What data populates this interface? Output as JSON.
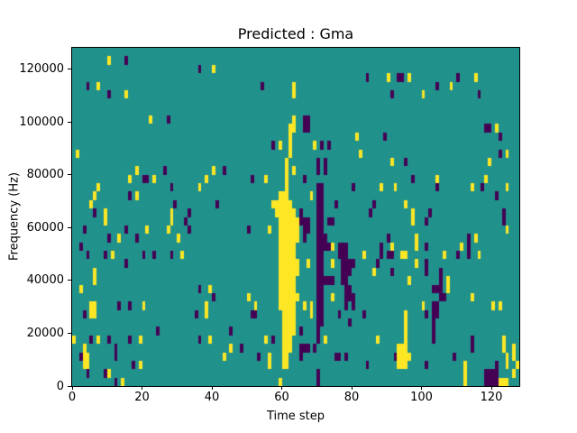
{
  "figure": {
    "title": "Predicted : Gma",
    "xlabel": "Time step",
    "ylabel": "Frequency (Hz)"
  },
  "chart_data": {
    "type": "heatmap",
    "title": "Predicted : Gma",
    "xlabel": "Time step",
    "ylabel": "Frequency (Hz)",
    "x_range": [
      0,
      128
    ],
    "y_range": [
      0,
      128000
    ],
    "x_ticks": [
      0,
      20,
      40,
      60,
      80,
      100,
      120
    ],
    "y_ticks": [
      0,
      20000,
      40000,
      60000,
      80000,
      100000,
      120000
    ],
    "grid": {
      "cols": 128,
      "rows": 40
    },
    "legend": "none",
    "gridlines": false,
    "colors": {
      "mid": "#21918c",
      "high": "#fde725",
      "low": "#440154"
    },
    "encoding": "cells given as vertical runs [col,row_top,row_bottom]; col 0 = time step 0 (left), row 0 = top of plot (~128000 Hz); all other cells have the mid (teal) value",
    "high_runs": [
      [
        10,
        1,
        1
      ],
      [
        40,
        2,
        2
      ],
      [
        7,
        4,
        4
      ],
      [
        15,
        5,
        5
      ],
      [
        22,
        8,
        8
      ],
      [
        1,
        12,
        12
      ],
      [
        18,
        14,
        14
      ],
      [
        40,
        14,
        14
      ],
      [
        16,
        15,
        15
      ],
      [
        23,
        15,
        15
      ],
      [
        38,
        15,
        15
      ],
      [
        7,
        16,
        16
      ],
      [
        36,
        16,
        16
      ],
      [
        6,
        17,
        17
      ],
      [
        18,
        17,
        17
      ],
      [
        5,
        18,
        18
      ],
      [
        9,
        19,
        19
      ],
      [
        28,
        19,
        19
      ],
      [
        63,
        4,
        5
      ],
      [
        63,
        8,
        9
      ],
      [
        62,
        9,
        12
      ],
      [
        59,
        11,
        11
      ],
      [
        69,
        11,
        11
      ],
      [
        81,
        10,
        10
      ],
      [
        82,
        12,
        12
      ],
      [
        61,
        13,
        37
      ],
      [
        63,
        14,
        14
      ],
      [
        55,
        15,
        15
      ],
      [
        68,
        17,
        17
      ],
      [
        57,
        18,
        18
      ],
      [
        58,
        18,
        19
      ],
      [
        59,
        17,
        30
      ],
      [
        60,
        17,
        37
      ],
      [
        62,
        18,
        35
      ],
      [
        63,
        19,
        33
      ],
      [
        64,
        20,
        22
      ],
      [
        64,
        25,
        26
      ],
      [
        64,
        29,
        29
      ],
      [
        56,
        21,
        21
      ],
      [
        50,
        29,
        29
      ],
      [
        52,
        30,
        30
      ],
      [
        66,
        30,
        30
      ],
      [
        68,
        30,
        31
      ],
      [
        67,
        25,
        25
      ],
      [
        74,
        23,
        23
      ],
      [
        74,
        25,
        25
      ],
      [
        74,
        29,
        29
      ],
      [
        83,
        24,
        24
      ],
      [
        45,
        35,
        35
      ],
      [
        43,
        36,
        36
      ],
      [
        55,
        34,
        34
      ],
      [
        72,
        34,
        34
      ],
      [
        56,
        36,
        37
      ],
      [
        59,
        39,
        39
      ],
      [
        90,
        3,
        3
      ],
      [
        96,
        3,
        3
      ],
      [
        115,
        3,
        3
      ],
      [
        108,
        4,
        4
      ],
      [
        100,
        5,
        5
      ],
      [
        121,
        9,
        9
      ],
      [
        124,
        12,
        12
      ],
      [
        91,
        13,
        13
      ],
      [
        119,
        13,
        13
      ],
      [
        104,
        15,
        15
      ],
      [
        118,
        15,
        15
      ],
      [
        88,
        16,
        16
      ],
      [
        92,
        16,
        16
      ],
      [
        114,
        16,
        16
      ],
      [
        124,
        16,
        16
      ],
      [
        95,
        18,
        18
      ],
      [
        97,
        19,
        19
      ],
      [
        9,
        20,
        20
      ],
      [
        28,
        20,
        20
      ],
      [
        21,
        21,
        21
      ],
      [
        27,
        21,
        21
      ],
      [
        13,
        22,
        22
      ],
      [
        30,
        22,
        22
      ],
      [
        11,
        24,
        24
      ],
      [
        31,
        24,
        24
      ],
      [
        6,
        26,
        27
      ],
      [
        2,
        28,
        28
      ],
      [
        39,
        28,
        28
      ],
      [
        20,
        30,
        30
      ],
      [
        5,
        30,
        31
      ],
      [
        6,
        30,
        31
      ],
      [
        38,
        30,
        31
      ],
      [
        0,
        34,
        34
      ],
      [
        7,
        34,
        34
      ],
      [
        19,
        34,
        34
      ],
      [
        39,
        34,
        34
      ],
      [
        3,
        35,
        37
      ],
      [
        4,
        36,
        37
      ],
      [
        19,
        37,
        37
      ],
      [
        10,
        38,
        38
      ],
      [
        14,
        39,
        39
      ],
      [
        97,
        20,
        20
      ],
      [
        124,
        21,
        21
      ],
      [
        98,
        22,
        23
      ],
      [
        115,
        22,
        22
      ],
      [
        91,
        23,
        23
      ],
      [
        111,
        23,
        23
      ],
      [
        94,
        24,
        24
      ],
      [
        95,
        24,
        24
      ],
      [
        106,
        24,
        24
      ],
      [
        116,
        24,
        24
      ],
      [
        98,
        25,
        25
      ],
      [
        86,
        26,
        26
      ],
      [
        96,
        27,
        27
      ],
      [
        107,
        27,
        28
      ],
      [
        114,
        29,
        29
      ],
      [
        100,
        30,
        30
      ],
      [
        120,
        30,
        30
      ],
      [
        122,
        30,
        30
      ],
      [
        95,
        31,
        37
      ],
      [
        93,
        35,
        37
      ],
      [
        94,
        35,
        37
      ],
      [
        96,
        36,
        36
      ],
      [
        87,
        34,
        34
      ],
      [
        123,
        34,
        35
      ],
      [
        126,
        35,
        36
      ],
      [
        124,
        36,
        37
      ],
      [
        127,
        37,
        37
      ],
      [
        112,
        37,
        39
      ],
      [
        126,
        38,
        38
      ],
      [
        122,
        39,
        39
      ],
      [
        123,
        39,
        39
      ],
      [
        124,
        39,
        39
      ]
    ],
    "low_runs": [
      [
        15,
        1,
        1
      ],
      [
        36,
        2,
        2
      ],
      [
        4,
        4,
        4
      ],
      [
        10,
        5,
        5
      ],
      [
        27,
        8,
        8
      ],
      [
        26,
        14,
        14
      ],
      [
        20,
        15,
        15
      ],
      [
        21,
        15,
        15
      ],
      [
        28,
        16,
        16
      ],
      [
        16,
        17,
        17
      ],
      [
        29,
        18,
        18
      ],
      [
        41,
        18,
        18
      ],
      [
        6,
        19,
        19
      ],
      [
        33,
        19,
        19
      ],
      [
        84,
        3,
        3
      ],
      [
        54,
        4,
        4
      ],
      [
        66,
        8,
        9
      ],
      [
        67,
        8,
        9
      ],
      [
        57,
        11,
        11
      ],
      [
        71,
        11,
        11
      ],
      [
        73,
        11,
        11
      ],
      [
        43,
        14,
        14
      ],
      [
        70,
        13,
        14
      ],
      [
        72,
        13,
        14
      ],
      [
        51,
        15,
        15
      ],
      [
        66,
        15,
        15
      ],
      [
        80,
        16,
        16
      ],
      [
        75,
        18,
        18
      ],
      [
        65,
        19,
        19
      ],
      [
        85,
        19,
        19
      ],
      [
        70,
        16,
        34
      ],
      [
        70,
        38,
        39
      ],
      [
        71,
        16,
        32
      ],
      [
        65,
        20,
        20
      ],
      [
        66,
        20,
        22
      ],
      [
        67,
        20,
        21
      ],
      [
        73,
        20,
        20
      ],
      [
        74,
        20,
        20
      ],
      [
        50,
        21,
        21
      ],
      [
        72,
        22,
        23
      ],
      [
        73,
        23,
        23
      ],
      [
        76,
        23,
        24
      ],
      [
        77,
        23,
        27
      ],
      [
        78,
        23,
        30
      ],
      [
        79,
        25,
        26
      ],
      [
        80,
        25,
        25
      ],
      [
        79,
        28,
        29
      ],
      [
        80,
        29,
        30
      ],
      [
        72,
        27,
        27
      ],
      [
        73,
        27,
        27
      ],
      [
        74,
        27,
        27
      ],
      [
        51,
        31,
        31
      ],
      [
        52,
        31,
        31
      ],
      [
        76,
        31,
        31
      ],
      [
        83,
        31,
        31
      ],
      [
        79,
        32,
        32
      ],
      [
        45,
        33,
        33
      ],
      [
        65,
        33,
        33
      ],
      [
        57,
        34,
        34
      ],
      [
        48,
        35,
        35
      ],
      [
        65,
        35,
        36
      ],
      [
        66,
        35,
        35
      ],
      [
        67,
        35,
        35
      ],
      [
        69,
        35,
        35
      ],
      [
        53,
        36,
        36
      ],
      [
        75,
        36,
        36
      ],
      [
        76,
        36,
        36
      ],
      [
        78,
        36,
        36
      ],
      [
        84,
        37,
        37
      ],
      [
        93,
        3,
        3
      ],
      [
        94,
        3,
        3
      ],
      [
        110,
        3,
        3
      ],
      [
        104,
        4,
        4
      ],
      [
        91,
        5,
        5
      ],
      [
        116,
        5,
        5
      ],
      [
        118,
        9,
        9
      ],
      [
        119,
        9,
        9
      ],
      [
        89,
        10,
        10
      ],
      [
        122,
        10,
        10
      ],
      [
        122,
        12,
        12
      ],
      [
        95,
        13,
        13
      ],
      [
        97,
        15,
        15
      ],
      [
        104,
        16,
        16
      ],
      [
        117,
        16,
        16
      ],
      [
        121,
        17,
        17
      ],
      [
        86,
        18,
        18
      ],
      [
        102,
        19,
        19
      ],
      [
        123,
        19,
        20
      ],
      [
        32,
        20,
        20
      ],
      [
        3,
        21,
        21
      ],
      [
        15,
        21,
        21
      ],
      [
        33,
        21,
        21
      ],
      [
        10,
        22,
        22
      ],
      [
        18,
        22,
        22
      ],
      [
        2,
        23,
        23
      ],
      [
        4,
        24,
        24
      ],
      [
        9,
        24,
        24
      ],
      [
        20,
        24,
        24
      ],
      [
        23,
        24,
        24
      ],
      [
        28,
        24,
        24
      ],
      [
        15,
        25,
        25
      ],
      [
        36,
        28,
        28
      ],
      [
        40,
        29,
        29
      ],
      [
        13,
        30,
        30
      ],
      [
        16,
        30,
        30
      ],
      [
        3,
        31,
        31
      ],
      [
        35,
        31,
        31
      ],
      [
        24,
        33,
        33
      ],
      [
        5,
        34,
        34
      ],
      [
        10,
        34,
        34
      ],
      [
        16,
        34,
        34
      ],
      [
        36,
        34,
        34
      ],
      [
        12,
        35,
        36
      ],
      [
        2,
        36,
        36
      ],
      [
        17,
        37,
        37
      ],
      [
        4,
        38,
        38
      ],
      [
        9,
        38,
        38
      ],
      [
        12,
        39,
        39
      ],
      [
        101,
        20,
        20
      ],
      [
        90,
        22,
        22
      ],
      [
        113,
        22,
        22
      ],
      [
        88,
        23,
        24
      ],
      [
        101,
        23,
        23
      ],
      [
        113,
        23,
        24
      ],
      [
        90,
        24,
        24
      ],
      [
        91,
        24,
        24
      ],
      [
        110,
        24,
        24
      ],
      [
        87,
        25,
        25
      ],
      [
        101,
        25,
        26
      ],
      [
        91,
        26,
        26
      ],
      [
        105,
        26,
        29
      ],
      [
        103,
        28,
        28
      ],
      [
        104,
        28,
        28
      ],
      [
        106,
        29,
        29
      ],
      [
        103,
        30,
        34
      ],
      [
        104,
        30,
        31
      ],
      [
        101,
        31,
        31
      ],
      [
        114,
        34,
        35
      ],
      [
        92,
        36,
        36
      ],
      [
        109,
        36,
        36
      ],
      [
        101,
        37,
        37
      ],
      [
        121,
        37,
        39
      ],
      [
        118,
        38,
        39
      ],
      [
        119,
        38,
        39
      ],
      [
        120,
        38,
        39
      ]
    ]
  }
}
